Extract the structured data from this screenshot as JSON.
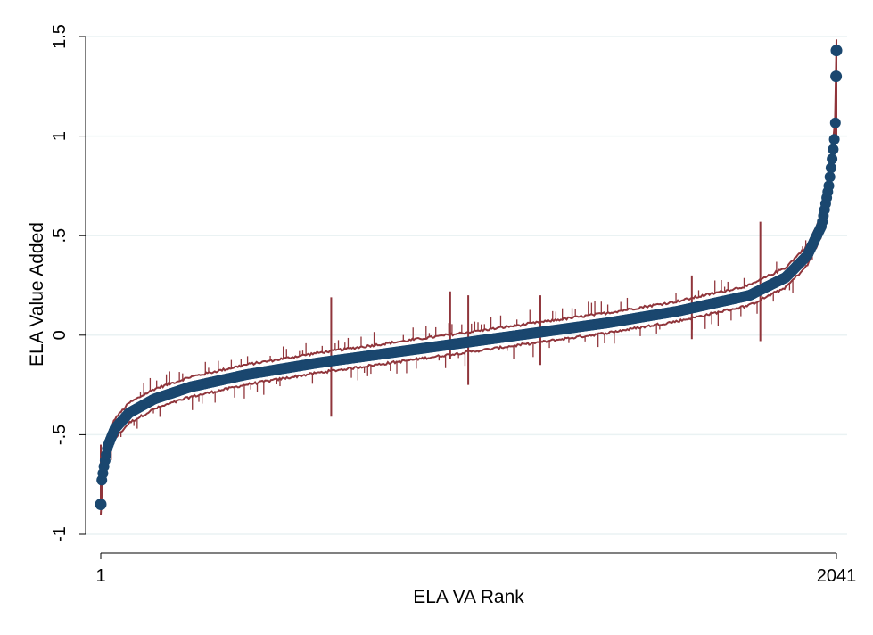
{
  "chart_data": {
    "type": "scatter",
    "xlabel": "ELA VA Rank",
    "ylabel": "ELA Value Added",
    "xlim": [
      1,
      2041
    ],
    "ylim": [
      -1,
      1.5
    ],
    "x_ticks": [
      {
        "value": 1,
        "label": "1"
      },
      {
        "value": 2041,
        "label": "2041"
      }
    ],
    "y_ticks": [
      {
        "value": -1,
        "label": "-1"
      },
      {
        "value": -0.5,
        "label": "-.5"
      },
      {
        "value": 0,
        "label": "0"
      },
      {
        "value": 0.5,
        "label": ".5"
      },
      {
        "value": 1,
        "label": "1"
      },
      {
        "value": 1.5,
        "label": "1.5"
      }
    ],
    "grid": true,
    "legend": "none",
    "n_points": 2041,
    "estimate_curve": [
      [
        1,
        -0.85
      ],
      [
        3,
        -0.74
      ],
      [
        10,
        -0.66
      ],
      [
        20,
        -0.56
      ],
      [
        40,
        -0.47
      ],
      [
        80,
        -0.39
      ],
      [
        150,
        -0.32
      ],
      [
        250,
        -0.26
      ],
      [
        400,
        -0.2
      ],
      [
        600,
        -0.14
      ],
      [
        800,
        -0.09
      ],
      [
        1000,
        -0.04
      ],
      [
        1200,
        0.01
      ],
      [
        1400,
        0.06
      ],
      [
        1600,
        0.12
      ],
      [
        1800,
        0.2
      ],
      [
        1900,
        0.29
      ],
      [
        1960,
        0.4
      ],
      [
        2000,
        0.55
      ],
      [
        2020,
        0.75
      ],
      [
        2030,
        0.9
      ],
      [
        2036,
        1.0
      ],
      [
        2039,
        1.1
      ],
      [
        2040,
        1.3
      ],
      [
        2041,
        1.43
      ]
    ],
    "ci_half_width": 0.05,
    "highlighted_points": [
      {
        "x": 1,
        "y": -0.85
      },
      {
        "x": 2040,
        "y": 1.3
      },
      {
        "x": 2041,
        "y": 1.43
      }
    ],
    "wide_interval_spikes": [
      {
        "x": 640,
        "low": -0.41,
        "high": 0.19
      },
      {
        "x": 970,
        "low": -0.12,
        "high": 0.22
      },
      {
        "x": 1020,
        "low": -0.25,
        "high": 0.2
      },
      {
        "x": 1220,
        "low": -0.15,
        "high": 0.2
      },
      {
        "x": 1640,
        "low": -0.02,
        "high": 0.3
      },
      {
        "x": 1830,
        "low": -0.03,
        "high": 0.57
      }
    ],
    "colors": {
      "point": "#1a476f",
      "ci": "#90353b",
      "grid": "#eaf2f3",
      "axis": "#000000"
    }
  }
}
